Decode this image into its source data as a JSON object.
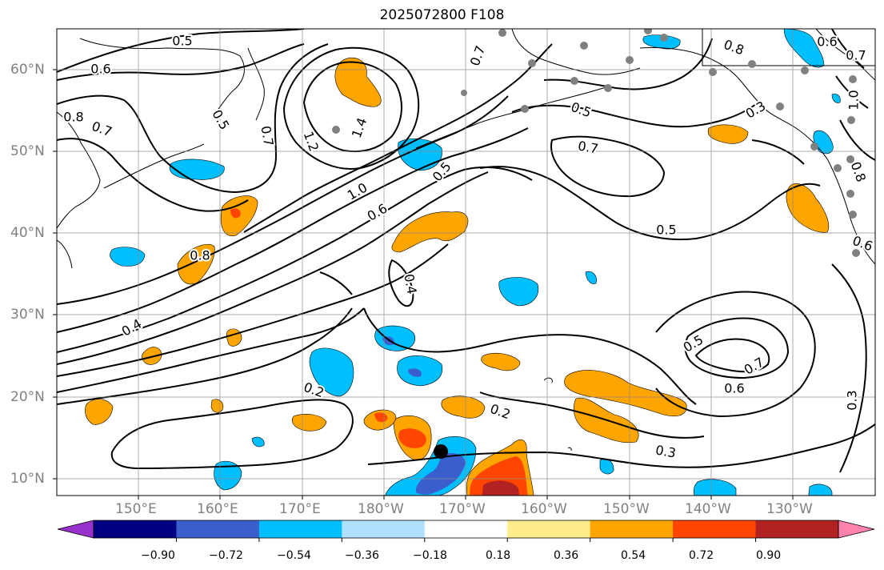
{
  "title": "2025072800 F108",
  "lat_labels": [
    "60°N",
    "50°N",
    "40°N",
    "30°N",
    "20°N",
    "10°N"
  ],
  "lon_labels": [
    "150°E",
    "160°E",
    "170°E",
    "180°W",
    "170°W",
    "160°W",
    "150°W",
    "140°W",
    "130°W"
  ],
  "colorbar": {
    "colors": [
      "#9932CC",
      "#000080",
      "#3A5FCD",
      "#00BFFF",
      "#B0E2FF",
      "#FFFFFF",
      "#FFEC8B",
      "#FFA500",
      "#FF4500",
      "#B22222",
      "#FF82AB"
    ],
    "tick_labels": [
      "−0.90",
      "−0.72",
      "−0.54",
      "−0.36",
      "−0.18",
      "0.18",
      "0.36",
      "0.54",
      "0.72",
      "0.90"
    ]
  },
  "contour_labels": [
    "0.5",
    "0.6",
    "0.8",
    "0.7",
    "0.5",
    "0.7",
    "1.2",
    "1.4",
    "1.0",
    "0.6",
    "0.5",
    "0.8",
    "0.4",
    "0.4",
    "0.7",
    "0.5",
    "0.5",
    "0.7",
    "0.6",
    "0.2",
    "0.2",
    "0.3",
    "0.5",
    "0.7",
    "0.6",
    "0.3",
    "0.6",
    "0.8",
    "1.0",
    "0.8",
    "0.7",
    "0.3"
  ]
}
